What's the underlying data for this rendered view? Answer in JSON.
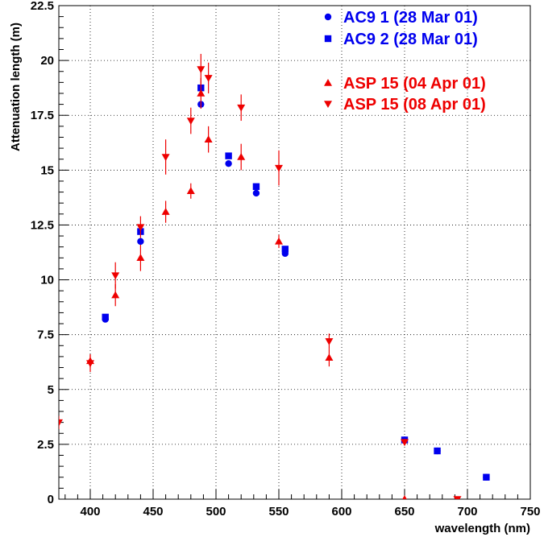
{
  "chart_data": {
    "type": "scatter",
    "xlabel": "wavelength (nm)",
    "ylabel": "Attenuation length (m)",
    "xlim": [
      375,
      750
    ],
    "ylim": [
      0,
      22.5
    ],
    "x_ticks": [
      400,
      450,
      500,
      550,
      600,
      650,
      700,
      750
    ],
    "x_tick_labels": [
      "400",
      "450",
      "500",
      "550",
      "600",
      "650",
      "700",
      "750"
    ],
    "y_ticks": [
      0,
      2.5,
      5,
      7.5,
      10,
      12.5,
      15,
      17.5,
      20,
      22.5
    ],
    "y_tick_labels": [
      "0",
      "2.5",
      "5",
      "7.5",
      "10",
      "12.5",
      "15",
      "17.5",
      "20",
      "22.5"
    ],
    "grid": true,
    "legend_position": "top-right",
    "series": [
      {
        "name": "AC9 1  (28 Mar 01)",
        "color": "#0000ee",
        "marker": "circle",
        "points": [
          {
            "x": 412,
            "y": 8.2
          },
          {
            "x": 440,
            "y": 11.75
          },
          {
            "x": 488,
            "y": 18.0
          },
          {
            "x": 510,
            "y": 15.3
          },
          {
            "x": 532,
            "y": 13.95
          },
          {
            "x": 555,
            "y": 11.2
          },
          {
            "x": 650,
            "y": 2.7
          },
          {
            "x": 676,
            "y": 2.2
          },
          {
            "x": 715,
            "y": 1.0
          }
        ]
      },
      {
        "name": "AC9 2  (28 Mar 01)",
        "color": "#0000ee",
        "marker": "square",
        "points": [
          {
            "x": 412,
            "y": 8.3
          },
          {
            "x": 440,
            "y": 12.2
          },
          {
            "x": 488,
            "y": 18.75
          },
          {
            "x": 510,
            "y": 15.65
          },
          {
            "x": 532,
            "y": 14.25
          },
          {
            "x": 555,
            "y": 11.4
          },
          {
            "x": 650,
            "y": 2.7
          },
          {
            "x": 676,
            "y": 2.2
          },
          {
            "x": 715,
            "y": 1.0
          }
        ]
      },
      {
        "name": "ASP 15 (04 Apr 01)",
        "color": "#ee0000",
        "marker": "triangle-up",
        "points": [
          {
            "x": 400,
            "y": 6.3,
            "err": 0.3
          },
          {
            "x": 420,
            "y": 9.3,
            "err": 0.5
          },
          {
            "x": 440,
            "y": 11.0,
            "err": 0.6
          },
          {
            "x": 460,
            "y": 13.1,
            "err": 0.5
          },
          {
            "x": 480,
            "y": 14.05,
            "err": 0.35
          },
          {
            "x": 488,
            "y": 18.5,
            "err": 0.7
          },
          {
            "x": 494,
            "y": 16.4,
            "err": 0.6
          },
          {
            "x": 520,
            "y": 15.6,
            "err": 0.6
          },
          {
            "x": 550,
            "y": 11.75,
            "err": 0.3
          },
          {
            "x": 590,
            "y": 6.45,
            "err": 0.4
          },
          {
            "x": 650,
            "y": 0.0,
            "err": 0.1
          }
        ]
      },
      {
        "name": "ASP 15 (08 Apr 01)",
        "color": "#ee0000",
        "marker": "triangle-down",
        "points": [
          {
            "x": 375,
            "y": 3.5,
            "err": 0.3
          },
          {
            "x": 400,
            "y": 6.2,
            "err": 0.4
          },
          {
            "x": 420,
            "y": 10.2,
            "err": 0.6
          },
          {
            "x": 440,
            "y": 12.4,
            "err": 0.5
          },
          {
            "x": 460,
            "y": 15.6,
            "err": 0.8
          },
          {
            "x": 480,
            "y": 17.25,
            "err": 0.6
          },
          {
            "x": 488,
            "y": 19.6,
            "err": 0.7
          },
          {
            "x": 494,
            "y": 19.2,
            "err": 0.7
          },
          {
            "x": 520,
            "y": 17.85,
            "err": 0.6
          },
          {
            "x": 550,
            "y": 15.1,
            "err": 0.8
          },
          {
            "x": 590,
            "y": 7.2,
            "err": 0.35
          },
          {
            "x": 650,
            "y": 2.6,
            "err": 0.15
          },
          {
            "x": 692,
            "y": 0.0,
            "err": 0.1
          }
        ]
      }
    ]
  }
}
